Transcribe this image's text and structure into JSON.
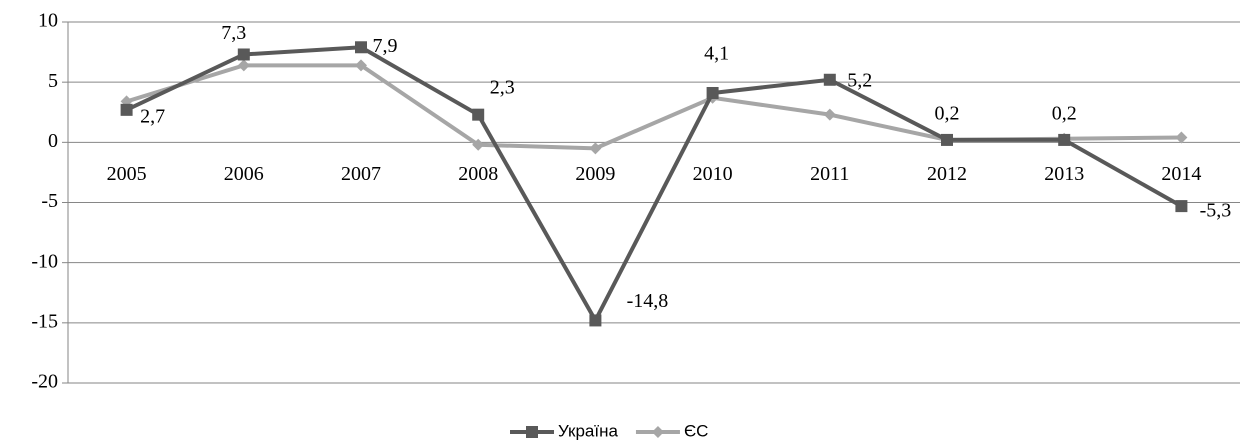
{
  "chart_data": {
    "type": "line",
    "categories": [
      "2005",
      "2006",
      "2007",
      "2008",
      "2009",
      "2010",
      "2011",
      "2012",
      "2013",
      "2014"
    ],
    "series": [
      {
        "name": "Україна",
        "color": "#595959",
        "marker": "square",
        "values": [
          2.7,
          7.3,
          7.9,
          2.3,
          -14.8,
          4.1,
          5.2,
          0.2,
          0.2,
          -5.3
        ],
        "value_labels": [
          "2,7",
          "7,3",
          "7,9",
          "2,3",
          "-14,8",
          "4,1",
          "5,2",
          "0,2",
          "0,2",
          "-5,3"
        ]
      },
      {
        "name": "ЄС",
        "color": "#a6a6a6",
        "marker": "diamond",
        "values": [
          3.4,
          6.4,
          6.4,
          -0.2,
          -0.5,
          3.7,
          2.3,
          0.2,
          0.3,
          0.4
        ]
      }
    ],
    "ylim": [
      -20,
      10
    ],
    "yticks": [
      -20,
      -15,
      -10,
      -5,
      0,
      5,
      10
    ],
    "grid": true,
    "legend": "bottom"
  }
}
